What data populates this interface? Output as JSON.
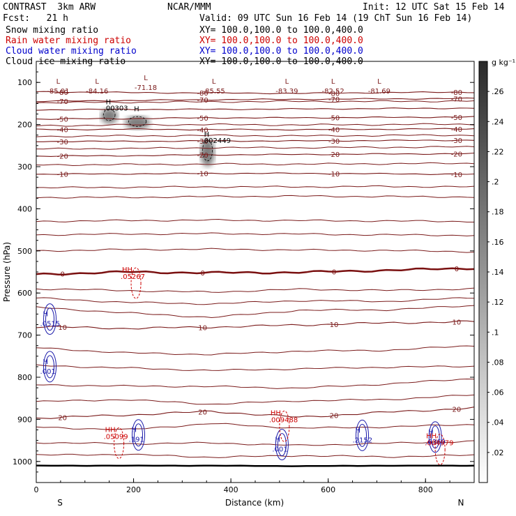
{
  "header": {
    "model": "CONTRAST  3km ARW",
    "org": "NCAR/MMM",
    "init": "Init: 12 UTC Sat 15 Feb 14",
    "fcst": "Fcst:   21 h",
    "valid": "Valid: 09 UTC Sun 16 Feb 14 (19 ChT Sun 16 Feb 14)",
    "fields": [
      {
        "name": "Snow mixing ratio",
        "xy": "XY= 100.0,100.0 to 100.0,400.0",
        "color": "#000000"
      },
      {
        "name": "Rain water mixing ratio",
        "xy": "XY= 100.0,100.0 to 100.0,400.0",
        "color": "#cc0000"
      },
      {
        "name": "Cloud water mixing ratio",
        "xy": "XY= 100.0,100.0 to 100.0,400.0",
        "color": "#0000cc"
      },
      {
        "name": "Cloud ice mixing ratio",
        "xy": "XY= 100.0,100.0 to 100.0,400.0",
        "color": "#000000"
      }
    ]
  },
  "colors": {
    "temperature": "#7a1a1a",
    "freezing": "#7a1010",
    "cloud_water": "#1a1aaa",
    "rain": "#cc0000",
    "snow": "#000000"
  },
  "chart_data": {
    "type": "cross-section",
    "xlabel": "Distance (km)",
    "ylabel": "Pressure (hPa)",
    "xlim": [
      0,
      900
    ],
    "ylim": [
      1050,
      50
    ],
    "x_ticks": [
      0,
      200,
      400,
      600,
      800
    ],
    "y_ticks": [
      100,
      200,
      300,
      400,
      500,
      600,
      700,
      800,
      900,
      1000
    ],
    "endpoints": {
      "left": "S",
      "right": "N"
    },
    "temperature_contours": [
      {
        "value": -80,
        "label": "-80",
        "p": [
          122,
          124,
          125,
          126,
          124,
          123
        ]
      },
      {
        "value": -70,
        "label": "-70",
        "p": [
          145,
          143,
          141,
          140,
          139,
          138
        ]
      },
      {
        "value": -60,
        "label": "",
        "p": [
          165,
          164,
          164,
          163,
          162,
          161
        ]
      },
      {
        "value": -50,
        "label": "-50",
        "p": [
          187,
          186,
          184,
          184,
          183,
          182
        ]
      },
      {
        "value": -40,
        "label": "-40",
        "p": [
          212,
          211,
          212,
          212,
          211,
          210
        ]
      },
      {
        "value": -30,
        "label": "-30",
        "p": [
          240,
          240,
          239,
          239,
          238,
          237
        ]
      },
      {
        "value": -20,
        "label": "-20",
        "p": [
          275,
          274,
          272,
          271,
          270,
          269
        ]
      },
      {
        "value": -10,
        "label": "-10",
        "p": [
          318,
          317,
          316,
          316,
          317,
          318
        ]
      },
      {
        "value": 0,
        "label": "0",
        "p": [
          556,
          550,
          552,
          551,
          546,
          541
        ]
      },
      {
        "value": 10,
        "label": "10",
        "p": [
          680,
          684,
          681,
          676,
          671,
          668
        ]
      },
      {
        "value": 20,
        "label": "20",
        "p": [
          897,
          890,
          881,
          895,
          883,
          873
        ]
      }
    ],
    "extra_temperature_lines": [
      {
        "label": "",
        "p": [
          148,
          147,
          146,
          145,
          145,
          144
        ]
      },
      {
        "label": "",
        "p": [
          203,
          201,
          200,
          201,
          200,
          199
        ]
      },
      {
        "label": "",
        "p": [
          228,
          227,
          226,
          227,
          226,
          225
        ]
      },
      {
        "label": "",
        "p": [
          258,
          257,
          255,
          255,
          254,
          253
        ]
      },
      {
        "label": "",
        "p": [
          296,
          295,
          294,
          294,
          293,
          292
        ]
      },
      {
        "label": "",
        "p": [
          350,
          349,
          348,
          348,
          347,
          348
        ]
      },
      {
        "label": "",
        "p": [
          373,
          373,
          371,
          370,
          371,
          372
        ]
      },
      {
        "label": "",
        "p": [
          430,
          428,
          427,
          428,
          429,
          430
        ]
      },
      {
        "label": "",
        "p": [
          462,
          460,
          459,
          460,
          462,
          463
        ]
      },
      {
        "label": "",
        "p": [
          500,
          497,
          496,
          498,
          499,
          502
        ]
      },
      {
        "label": "",
        "p": [
          590,
          594,
          598,
          591,
          594,
          590
        ]
      },
      {
        "label": "",
        "p": [
          612,
          622,
          626,
          618,
          620,
          611
        ]
      },
      {
        "label": "",
        "p": [
          634,
          647,
          658,
          641,
          640,
          630
        ]
      },
      {
        "label": "",
        "p": [
          730,
          742,
          746,
          738,
          736,
          725
        ]
      },
      {
        "label": "",
        "p": [
          772,
          778,
          784,
          780,
          776,
          774
        ]
      },
      {
        "label": "",
        "p": [
          818,
          821,
          822,
          826,
          816,
          803
        ]
      },
      {
        "label": "",
        "p": [
          858,
          853,
          864,
          856,
          853,
          842
        ]
      },
      {
        "label": "",
        "p": [
          918,
          925,
          910,
          921,
          918,
          912
        ]
      },
      {
        "label": "",
        "p": [
          955,
          958,
          956,
          962,
          957,
          952
        ]
      },
      {
        "label": "",
        "p": [
          985,
          983,
          990,
          986,
          989,
          985
        ]
      }
    ],
    "surface_line": {
      "p": [
        1010,
        1010,
        1010,
        1011,
        1010,
        1010
      ]
    },
    "low_markers": [
      {
        "x": 45,
        "p": 103,
        "label": "-85.01"
      },
      {
        "x": 125,
        "p": 103,
        "label": "-84.16"
      },
      {
        "x": 225,
        "p": 95,
        "label": "-71.18"
      },
      {
        "x": 365,
        "p": 103,
        "label": "-85.55"
      },
      {
        "x": 515,
        "p": 103,
        "label": "-83.39"
      },
      {
        "x": 610,
        "p": 103,
        "label": "-82.52"
      },
      {
        "x": 705,
        "p": 103,
        "label": "-81.69"
      }
    ],
    "snow_features": [
      {
        "x": 150,
        "p": 168,
        "wx": 12,
        "hp": 30,
        "max_label": ".00303",
        "color": "#000000"
      },
      {
        "x": 208,
        "p": 185,
        "wx": 18,
        "hp": 26,
        "max_label": "",
        "color": "#000000"
      },
      {
        "x": 352,
        "p": 245,
        "wx": 10,
        "hp": 55,
        "max_label": ".002449",
        "color": "#000000"
      }
    ],
    "rain_features": [
      {
        "x": 205,
        "p": 560,
        "label": ".05267",
        "color": "#cc0000"
      },
      {
        "x": 510,
        "p": 900,
        "label": ".009488",
        "color": "#cc0000"
      },
      {
        "x": 170,
        "p": 940,
        "label": ".05099",
        "color": "#cc0000"
      },
      {
        "x": 830,
        "p": 955,
        "label": ".004979",
        "color": "#cc0000"
      }
    ],
    "cloud_water_features": [
      {
        "x": 28,
        "p": 662,
        "label": ".0515"
      },
      {
        "x": 28,
        "p": 775,
        "label": ".001"
      },
      {
        "x": 210,
        "p": 937,
        "label": ".191"
      },
      {
        "x": 505,
        "p": 960,
        "label": ".001"
      },
      {
        "x": 670,
        "p": 938,
        "label": ".2152"
      },
      {
        "x": 820,
        "p": 942,
        "label": ".6369"
      }
    ],
    "colorbar": {
      "unit": "g kg⁻¹",
      "ticks": [
        0.02,
        0.04,
        0.06,
        0.08,
        0.1,
        0.12,
        0.14,
        0.16,
        0.18,
        0.2,
        0.22,
        0.24,
        0.26
      ],
      "tick_labels": [
        ".02",
        ".04",
        ".06",
        ".08",
        ".1",
        ".12",
        ".14",
        ".16",
        ".18",
        ".2",
        ".22",
        ".24",
        ".26"
      ],
      "range": [
        0,
        0.28
      ]
    }
  }
}
